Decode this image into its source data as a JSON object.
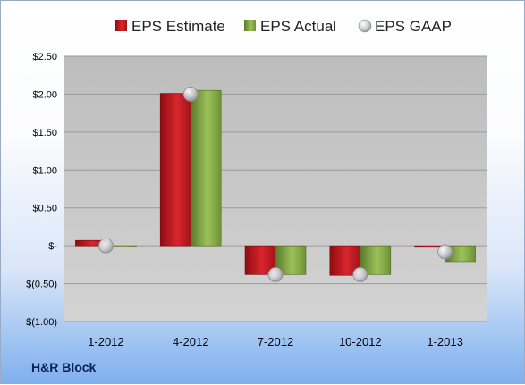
{
  "company_name": "H&R Block",
  "colors": {
    "estimate": "#c8141b",
    "actual": "#7ea33e",
    "gaap": "#b9bcc2",
    "plot_bg": "#cbcbcb",
    "grid": "#9a9a9a"
  },
  "chart_data": {
    "type": "bar",
    "categories": [
      "1-2012",
      "4-2012",
      "7-2012",
      "10-2012",
      "1-2013"
    ],
    "series": [
      {
        "name": "EPS Estimate",
        "kind": "bar",
        "values": [
          0.07,
          2.01,
          -0.38,
          -0.39,
          -0.02
        ]
      },
      {
        "name": "EPS Actual",
        "kind": "bar",
        "values": [
          -0.01,
          2.05,
          -0.38,
          -0.38,
          -0.21
        ]
      },
      {
        "name": "EPS GAAP",
        "kind": "marker",
        "values": [
          0.0,
          2.0,
          -0.38,
          -0.38,
          -0.08
        ]
      }
    ],
    "ylim": [
      -1.0,
      2.5
    ],
    "yticks": [
      2.5,
      2.0,
      1.5,
      1.0,
      0.5,
      0.0,
      -0.5,
      -1.0
    ],
    "ytick_labels": [
      "$2.50",
      "$2.00",
      "$1.50",
      "$1.00",
      "$0.50",
      "$-",
      "$(0.50)",
      "$(1.00)"
    ],
    "legend_position": "top",
    "grid": true,
    "title": "",
    "xlabel": "",
    "ylabel": ""
  }
}
